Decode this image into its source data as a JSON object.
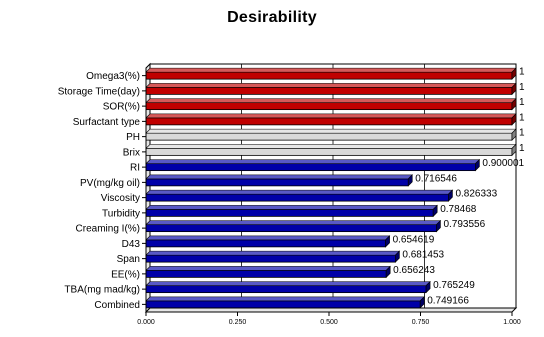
{
  "chart_data": {
    "type": "bar",
    "orientation": "horizontal",
    "style": "3d",
    "title": "Desirability",
    "xlim": [
      0,
      1
    ],
    "x_ticks": [
      "0.000",
      "0.250",
      "0.500",
      "0.750",
      "1.000"
    ],
    "grid": true,
    "legend": "none",
    "categories": [
      "Omega3(%)",
      "Storage Time(day)",
      "SOR(%)",
      "Surfactant type",
      "PH",
      "Brix",
      "RI",
      "PV(mg/kg oil)",
      "Viscosity",
      "Turbidity",
      "Creaming I(%)",
      "D43",
      "Span",
      "EE(%)",
      "TBA(mg mad/kg)",
      "Combined"
    ],
    "values": [
      1,
      1,
      1,
      1,
      1,
      1,
      0.900001,
      0.716546,
      0.826333,
      0.78468,
      0.793556,
      0.654619,
      0.681453,
      0.656243,
      0.765249,
      0.749166
    ],
    "value_labels": [
      "1",
      "1",
      "1",
      "1",
      "1",
      "1",
      "0.900001",
      "0.716546",
      "0.826333",
      "0.78468",
      "0.793556",
      "0.654619",
      "0.681453",
      "0.656243",
      "0.765249",
      "0.749166"
    ],
    "bar_colors": [
      "#c00000",
      "#c00000",
      "#c00000",
      "#c00000",
      "#d9d9d9",
      "#d9d9d9",
      "#0000a8",
      "#0000a8",
      "#0000a8",
      "#0000a8",
      "#0000a8",
      "#0000a8",
      "#0000a8",
      "#0000a8",
      "#0000a8",
      "#0000a8"
    ]
  }
}
